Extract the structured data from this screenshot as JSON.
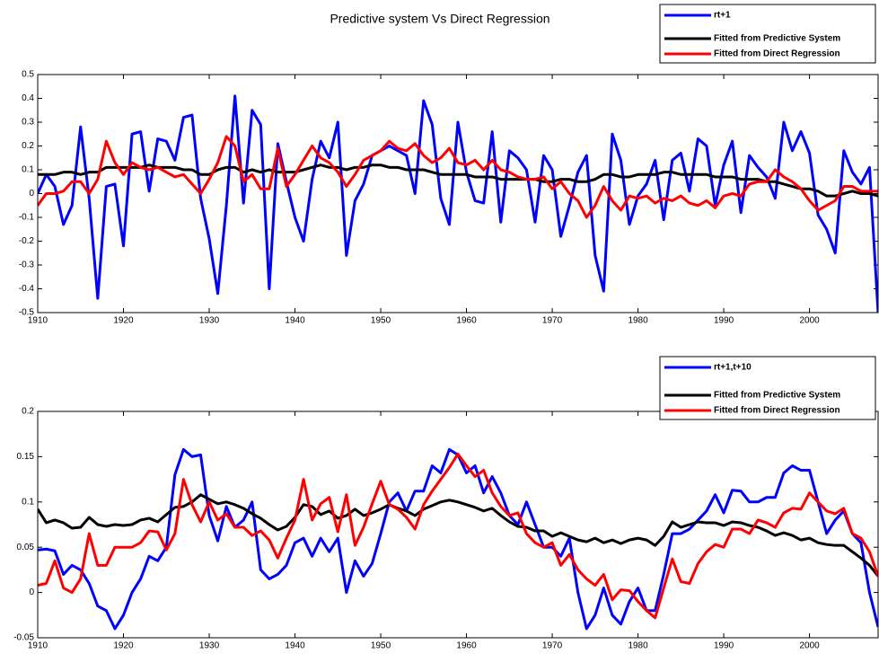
{
  "chart_data": [
    {
      "type": "line",
      "title": "Predictive system Vs Direct Regression",
      "legend": "northeastoutside",
      "x": [
        1910,
        1911,
        1912,
        1913,
        1914,
        1915,
        1916,
        1917,
        1918,
        1919,
        1920,
        1921,
        1922,
        1923,
        1924,
        1925,
        1926,
        1927,
        1928,
        1929,
        1930,
        1931,
        1932,
        1933,
        1934,
        1935,
        1936,
        1937,
        1938,
        1939,
        1940,
        1941,
        1942,
        1943,
        1944,
        1945,
        1946,
        1947,
        1948,
        1949,
        1950,
        1951,
        1952,
        1953,
        1954,
        1955,
        1956,
        1957,
        1958,
        1959,
        1960,
        1961,
        1962,
        1963,
        1964,
        1965,
        1966,
        1967,
        1968,
        1969,
        1970,
        1971,
        1972,
        1973,
        1974,
        1975,
        1976,
        1977,
        1978,
        1979,
        1980,
        1981,
        1982,
        1983,
        1984,
        1985,
        1986,
        1987,
        1988,
        1989,
        1990,
        1991,
        1992,
        1993,
        1994,
        1995,
        1996,
        1997,
        1998,
        1999,
        2000,
        2001,
        2002,
        2003,
        2004,
        2005,
        2006,
        2007,
        2008
      ],
      "xlim": [
        1910,
        2008
      ],
      "xticks": [
        1910,
        1920,
        1930,
        1940,
        1950,
        1960,
        1970,
        1980,
        1990,
        2000
      ],
      "ylim": [
        -0.5,
        0.5
      ],
      "yticks": [
        -0.5,
        -0.4,
        -0.3,
        -0.2,
        -0.1,
        0,
        0.1,
        0.2,
        0.3,
        0.4,
        0.5
      ],
      "series": [
        {
          "name": "rt+1",
          "color": "#0000ff",
          "values": [
            0.0,
            0.08,
            0.03,
            -0.13,
            -0.05,
            0.28,
            -0.02,
            -0.44,
            0.03,
            0.04,
            -0.22,
            0.25,
            0.26,
            0.01,
            0.23,
            0.22,
            0.14,
            0.32,
            0.33,
            -0.02,
            -0.19,
            -0.42,
            -0.05,
            0.41,
            -0.04,
            0.35,
            0.29,
            -0.4,
            0.21,
            0.05,
            -0.1,
            -0.2,
            0.06,
            0.22,
            0.15,
            0.3,
            -0.26,
            -0.03,
            0.04,
            0.16,
            0.18,
            0.2,
            0.18,
            0.16,
            0.0,
            0.39,
            0.29,
            -0.02,
            -0.13,
            0.3,
            0.09,
            -0.03,
            -0.04,
            0.26,
            -0.12,
            0.18,
            0.15,
            0.1,
            -0.12,
            0.16,
            0.1,
            -0.18,
            -0.05,
            0.09,
            0.16,
            -0.26,
            -0.41,
            0.25,
            0.14,
            -0.13,
            -0.01,
            0.04,
            0.14,
            -0.11,
            0.14,
            0.17,
            0.01,
            0.23,
            0.2,
            -0.05,
            0.12,
            0.22,
            -0.08,
            0.16,
            0.11,
            0.07,
            -0.02,
            0.3,
            0.18,
            0.26,
            0.17,
            -0.09,
            -0.15,
            -0.25,
            0.18,
            0.09,
            0.04,
            0.11,
            -0.5
          ]
        },
        {
          "name": "Fitted from Predictive System",
          "color": "#000000",
          "values": [
            0.08,
            0.08,
            0.08,
            0.09,
            0.09,
            0.08,
            0.09,
            0.09,
            0.11,
            0.11,
            0.11,
            0.11,
            0.11,
            0.12,
            0.11,
            0.11,
            0.11,
            0.1,
            0.1,
            0.08,
            0.08,
            0.1,
            0.11,
            0.11,
            0.09,
            0.1,
            0.09,
            0.1,
            0.09,
            0.09,
            0.09,
            0.1,
            0.11,
            0.12,
            0.11,
            0.11,
            0.1,
            0.11,
            0.11,
            0.12,
            0.12,
            0.11,
            0.11,
            0.1,
            0.1,
            0.1,
            0.09,
            0.08,
            0.08,
            0.08,
            0.08,
            0.07,
            0.07,
            0.07,
            0.06,
            0.06,
            0.06,
            0.06,
            0.06,
            0.05,
            0.05,
            0.06,
            0.06,
            0.05,
            0.05,
            0.06,
            0.08,
            0.08,
            0.07,
            0.07,
            0.08,
            0.08,
            0.08,
            0.09,
            0.09,
            0.08,
            0.08,
            0.08,
            0.08,
            0.07,
            0.07,
            0.07,
            0.06,
            0.06,
            0.06,
            0.05,
            0.05,
            0.04,
            0.03,
            0.02,
            0.02,
            0.01,
            -0.01,
            -0.01,
            0.0,
            0.01,
            0.0,
            0.0,
            -0.01
          ]
        },
        {
          "name": "Fitted from Direct Regression",
          "color": "#ff0000",
          "values": [
            -0.05,
            0.0,
            0.0,
            0.01,
            0.05,
            0.05,
            0.0,
            0.06,
            0.22,
            0.13,
            0.08,
            0.13,
            0.11,
            0.1,
            0.11,
            0.09,
            0.07,
            0.08,
            0.04,
            0.0,
            0.06,
            0.13,
            0.24,
            0.2,
            0.05,
            0.08,
            0.02,
            0.02,
            0.19,
            0.03,
            0.08,
            0.14,
            0.2,
            0.15,
            0.13,
            0.09,
            0.03,
            0.08,
            0.14,
            0.16,
            0.18,
            0.22,
            0.19,
            0.18,
            0.21,
            0.16,
            0.13,
            0.15,
            0.19,
            0.13,
            0.12,
            0.14,
            0.1,
            0.14,
            0.1,
            0.09,
            0.07,
            0.06,
            0.06,
            0.07,
            0.02,
            0.05,
            0.0,
            -0.03,
            -0.1,
            -0.05,
            0.03,
            -0.03,
            -0.07,
            -0.01,
            -0.02,
            -0.01,
            -0.04,
            -0.02,
            -0.03,
            -0.01,
            -0.04,
            -0.05,
            -0.03,
            -0.06,
            -0.01,
            0.0,
            -0.01,
            0.04,
            0.05,
            0.05,
            0.1,
            0.07,
            0.05,
            0.02,
            -0.03,
            -0.07,
            -0.05,
            -0.03,
            0.03,
            0.03,
            0.01,
            0.01,
            0.01
          ]
        }
      ]
    },
    {
      "type": "line",
      "legend": "northeastoutside",
      "x": [
        1910,
        1911,
        1912,
        1913,
        1914,
        1915,
        1916,
        1917,
        1918,
        1919,
        1920,
        1921,
        1922,
        1923,
        1924,
        1925,
        1926,
        1927,
        1928,
        1929,
        1930,
        1931,
        1932,
        1933,
        1934,
        1935,
        1936,
        1937,
        1938,
        1939,
        1940,
        1941,
        1942,
        1943,
        1944,
        1945,
        1946,
        1947,
        1948,
        1949,
        1950,
        1951,
        1952,
        1953,
        1954,
        1955,
        1956,
        1957,
        1958,
        1959,
        1960,
        1961,
        1962,
        1963,
        1964,
        1965,
        1966,
        1967,
        1968,
        1969,
        1970,
        1971,
        1972,
        1973,
        1974,
        1975,
        1976,
        1977,
        1978,
        1979,
        1980,
        1981,
        1982,
        1983,
        1984,
        1985,
        1986,
        1987,
        1988,
        1989,
        1990,
        1991,
        1992,
        1993,
        1994,
        1995,
        1996,
        1997,
        1998,
        1999,
        2000,
        2001,
        2002,
        2003,
        2004,
        2005,
        2006,
        2007,
        2008
      ],
      "xlim": [
        1910,
        2008
      ],
      "xticks": [
        1910,
        1920,
        1930,
        1940,
        1950,
        1960,
        1970,
        1980,
        1990,
        2000
      ],
      "ylim": [
        -0.05,
        0.2
      ],
      "yticks": [
        -0.05,
        0,
        0.05,
        0.1,
        0.15,
        0.2
      ],
      "series": [
        {
          "name": "rt+1,t+10",
          "color": "#0000ff",
          "values": [
            0.047,
            0.048,
            0.046,
            0.02,
            0.03,
            0.025,
            0.01,
            -0.015,
            -0.02,
            -0.04,
            -0.025,
            0.0,
            0.015,
            0.04,
            0.035,
            0.05,
            0.13,
            0.158,
            0.15,
            0.152,
            0.085,
            0.057,
            0.095,
            0.072,
            0.08,
            0.1,
            0.025,
            0.015,
            0.02,
            0.03,
            0.055,
            0.06,
            0.04,
            0.06,
            0.045,
            0.06,
            0.0,
            0.035,
            0.018,
            0.032,
            0.065,
            0.1,
            0.11,
            0.09,
            0.112,
            0.112,
            0.14,
            0.132,
            0.158,
            0.152,
            0.132,
            0.14,
            0.11,
            0.128,
            0.11,
            0.085,
            0.075,
            0.1,
            0.075,
            0.05,
            0.05,
            0.04,
            0.06,
            0.0,
            -0.04,
            -0.025,
            0.005,
            -0.025,
            -0.035,
            -0.01,
            0.005,
            -0.02,
            -0.02,
            0.02,
            0.065,
            0.065,
            0.07,
            0.08,
            0.09,
            0.108,
            0.088,
            0.113,
            0.112,
            0.1,
            0.1,
            0.105,
            0.105,
            0.132,
            0.14,
            0.135,
            0.135,
            0.1,
            0.065,
            0.08,
            0.09,
            0.065,
            0.055,
            0.0,
            -0.038
          ]
        },
        {
          "name": "Fitted from Predictive System",
          "color": "#000000",
          "values": [
            0.092,
            0.077,
            0.08,
            0.077,
            0.071,
            0.072,
            0.083,
            0.075,
            0.073,
            0.075,
            0.074,
            0.075,
            0.08,
            0.082,
            0.078,
            0.086,
            0.094,
            0.095,
            0.1,
            0.108,
            0.103,
            0.098,
            0.1,
            0.097,
            0.093,
            0.087,
            0.082,
            0.075,
            0.069,
            0.073,
            0.083,
            0.097,
            0.095,
            0.086,
            0.09,
            0.082,
            0.085,
            0.092,
            0.085,
            0.088,
            0.092,
            0.097,
            0.093,
            0.09,
            0.085,
            0.092,
            0.096,
            0.1,
            0.102,
            0.1,
            0.097,
            0.094,
            0.09,
            0.093,
            0.085,
            0.078,
            0.073,
            0.072,
            0.068,
            0.068,
            0.062,
            0.066,
            0.062,
            0.058,
            0.056,
            0.06,
            0.055,
            0.058,
            0.054,
            0.058,
            0.06,
            0.058,
            0.052,
            0.062,
            0.078,
            0.072,
            0.075,
            0.078,
            0.077,
            0.077,
            0.074,
            0.078,
            0.077,
            0.074,
            0.072,
            0.068,
            0.063,
            0.066,
            0.063,
            0.058,
            0.06,
            0.055,
            0.053,
            0.052,
            0.052,
            0.045,
            0.038,
            0.03,
            0.018
          ]
        },
        {
          "name": "Fitted from Direct Regression",
          "color": "#ff0000",
          "values": [
            0.008,
            0.01,
            0.035,
            0.005,
            0.0,
            0.015,
            0.065,
            0.03,
            0.03,
            0.05,
            0.05,
            0.05,
            0.055,
            0.068,
            0.067,
            0.047,
            0.065,
            0.125,
            0.097,
            0.078,
            0.1,
            0.08,
            0.087,
            0.072,
            0.072,
            0.063,
            0.068,
            0.058,
            0.038,
            0.06,
            0.08,
            0.125,
            0.08,
            0.098,
            0.105,
            0.067,
            0.108,
            0.052,
            0.072,
            0.098,
            0.123,
            0.097,
            0.092,
            0.083,
            0.07,
            0.097,
            0.112,
            0.125,
            0.138,
            0.153,
            0.14,
            0.128,
            0.135,
            0.11,
            0.095,
            0.085,
            0.088,
            0.065,
            0.055,
            0.05,
            0.055,
            0.03,
            0.042,
            0.025,
            0.015,
            0.008,
            0.02,
            -0.008,
            0.003,
            0.002,
            -0.01,
            -0.02,
            -0.028,
            0.005,
            0.037,
            0.012,
            0.01,
            0.032,
            0.045,
            0.053,
            0.05,
            0.07,
            0.07,
            0.065,
            0.08,
            0.077,
            0.072,
            0.088,
            0.093,
            0.092,
            0.11,
            0.1,
            0.09,
            0.087,
            0.093,
            0.065,
            0.06,
            0.045,
            0.018
          ]
        }
      ]
    }
  ]
}
